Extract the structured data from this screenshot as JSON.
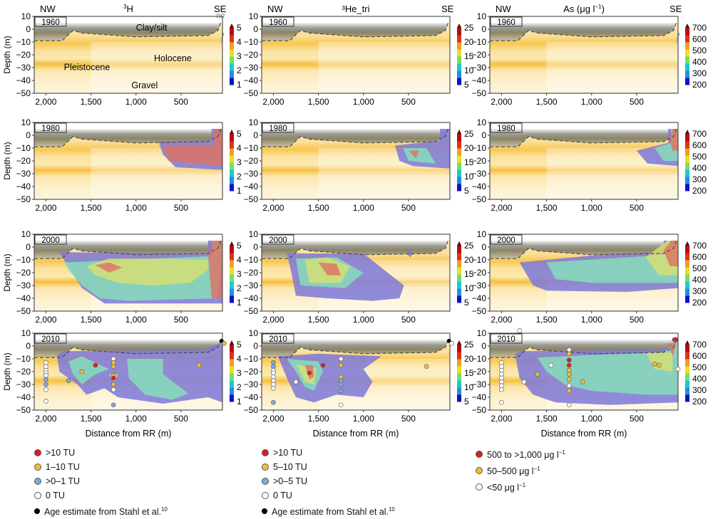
{
  "chart_data": {
    "type": "contour",
    "shared": {
      "xlabel": "Distance from RR (m)",
      "ylabel": "Depth (m)",
      "xlim": [
        2130,
        40
      ],
      "ylim": [
        -50,
        10
      ],
      "xticks": [
        "2,000",
        "1,500",
        "1,000",
        "500"
      ],
      "xtick_values": [
        2000,
        1500,
        1000,
        500
      ],
      "yticks": [
        "10",
        "0",
        "−10",
        "−20",
        "−30",
        "−40",
        "−50"
      ],
      "ytick_values": [
        10,
        0,
        -10,
        -20,
        -30,
        -40,
        -50
      ],
      "left_label": "NW",
      "right_label": "SE",
      "layer_labels": {
        "clay": "Clay/silt",
        "holocene": "Holocene",
        "pleistocene": "Pleistocene",
        "gravel": "Gravel",
        "river": "RR"
      }
    },
    "years": [
      "1960",
      "1980",
      "2000",
      "2010"
    ],
    "columns": [
      {
        "title": "³H",
        "title_base": "H",
        "title_sup": "3",
        "title_sub": "",
        "colorbar": {
          "ticks": [
            1,
            2,
            3,
            4,
            5
          ],
          "colors": [
            "#1010c0",
            "#1f8fe0",
            "#20c8c8",
            "#70e070",
            "#e8e020",
            "#f0a020",
            "#e03020",
            "#b01010"
          ],
          "extend": "max"
        }
      },
      {
        "title": "³He_tri",
        "title_base": "He",
        "title_sup": "3",
        "title_sub": "tri",
        "colorbar": {
          "ticks": [
            5,
            10,
            15,
            20,
            25
          ],
          "colors": [
            "#1010c0",
            "#1f8fe0",
            "#20c8c8",
            "#70e070",
            "#e8e020",
            "#f0a020",
            "#e03020",
            "#b01010"
          ],
          "extend": "max"
        }
      },
      {
        "title": "As (μg l⁻¹)",
        "title_base": "As (μg l",
        "title_sup": "−1",
        "title_tail": ")",
        "title_sub": "",
        "colorbar": {
          "ticks": [
            200,
            300,
            400,
            500,
            600,
            700
          ],
          "colors": [
            "#1010c0",
            "#1f8fe0",
            "#20c8c8",
            "#70e070",
            "#e8e020",
            "#f0a020",
            "#e03020",
            "#b01010"
          ],
          "extend": "max"
        }
      }
    ],
    "samples_2010": [
      {
        "column": 0,
        "points": [
          [
            2000,
            -13,
            "w"
          ],
          [
            2000,
            -16,
            "w"
          ],
          [
            2000,
            -19,
            "w"
          ],
          [
            2000,
            -21,
            "w"
          ],
          [
            2000,
            -23,
            "w"
          ],
          [
            2000,
            -26,
            "b"
          ],
          [
            2000,
            -30,
            "b"
          ],
          [
            2000,
            -34,
            "w"
          ],
          [
            2000,
            -43,
            "w"
          ],
          [
            1750,
            -27,
            "b"
          ],
          [
            1600,
            -20,
            "y"
          ],
          [
            1450,
            -15,
            "r"
          ],
          [
            1250,
            -10,
            "w"
          ],
          [
            1250,
            -13,
            "y"
          ],
          [
            1250,
            -16,
            "y"
          ],
          [
            1250,
            -23,
            "y"
          ],
          [
            1250,
            -25,
            "r"
          ],
          [
            1250,
            -30,
            "y"
          ],
          [
            1250,
            -34,
            "w"
          ],
          [
            1250,
            -46,
            "b"
          ],
          [
            300,
            -15,
            "y"
          ],
          [
            50,
            4,
            "k"
          ],
          [
            20,
            2,
            "y"
          ]
        ]
      },
      {
        "column": 1,
        "points": [
          [
            2000,
            -13,
            "b"
          ],
          [
            2000,
            -16,
            "b"
          ],
          [
            2000,
            -19,
            "w"
          ],
          [
            2000,
            -21,
            "w"
          ],
          [
            2000,
            -24,
            "w"
          ],
          [
            2000,
            -27,
            "w"
          ],
          [
            2000,
            -30,
            "w"
          ],
          [
            2000,
            -33,
            "w"
          ],
          [
            2000,
            -44,
            "b"
          ],
          [
            1750,
            -28,
            "w"
          ],
          [
            1600,
            -21,
            "r"
          ],
          [
            1450,
            -15,
            "r"
          ],
          [
            1250,
            -10,
            "w"
          ],
          [
            1250,
            -15,
            "y"
          ],
          [
            1250,
            -24,
            "y"
          ],
          [
            1250,
            -27,
            "b"
          ],
          [
            1250,
            -30,
            "b"
          ],
          [
            1250,
            -35,
            "b"
          ],
          [
            1250,
            -46,
            "w"
          ],
          [
            300,
            -16,
            "y"
          ],
          [
            50,
            4,
            "k"
          ],
          [
            20,
            2,
            "w"
          ]
        ]
      },
      {
        "column": 2,
        "points": [
          [
            2000,
            -13,
            "w"
          ],
          [
            2000,
            -16,
            "w"
          ],
          [
            2000,
            -19,
            "w"
          ],
          [
            2000,
            -22,
            "w"
          ],
          [
            2000,
            -25,
            "w"
          ],
          [
            2000,
            -28,
            "w"
          ],
          [
            2000,
            -31,
            "w"
          ],
          [
            2000,
            -34,
            "w"
          ],
          [
            2000,
            -44,
            "w"
          ],
          [
            1800,
            12,
            "w"
          ],
          [
            1750,
            -28,
            "w"
          ],
          [
            1600,
            -22,
            "y"
          ],
          [
            1450,
            -15,
            "w"
          ],
          [
            1250,
            -3,
            "w"
          ],
          [
            1250,
            -6,
            "y"
          ],
          [
            1250,
            -11,
            "r"
          ],
          [
            1250,
            -15,
            "r"
          ],
          [
            1250,
            -19,
            "y"
          ],
          [
            1250,
            -22,
            "y"
          ],
          [
            1250,
            -26,
            "y"
          ],
          [
            1250,
            -31,
            "w"
          ],
          [
            1250,
            -35,
            "y"
          ],
          [
            1250,
            -46,
            "w"
          ],
          [
            1100,
            -28,
            "y"
          ],
          [
            300,
            -14,
            "y"
          ],
          [
            250,
            -15,
            "y"
          ],
          [
            80,
            5,
            "r"
          ],
          [
            60,
            5,
            "r"
          ],
          [
            40,
            -18,
            "w"
          ]
        ]
      }
    ]
  },
  "legends": [
    {
      "items": [
        {
          "cat": "r",
          "label": ">10 TU"
        },
        {
          "cat": "y",
          "label": "1–10 TU"
        },
        {
          "cat": "b",
          "label": ">0–1 TU"
        },
        {
          "cat": "w",
          "label": "0 TU"
        },
        {
          "cat": "k",
          "label": "Age estimate from Stahl et al.",
          "sup": "10"
        }
      ]
    },
    {
      "items": [
        {
          "cat": "r",
          "label": ">10 TU"
        },
        {
          "cat": "y",
          "label": "5–10 TU"
        },
        {
          "cat": "b",
          "label": ">0–5 TU"
        },
        {
          "cat": "w",
          "label": "0 TU"
        },
        {
          "cat": "k",
          "label": "Age estimate from Stahl et al.",
          "sup": "10"
        }
      ]
    },
    {
      "items": [
        {
          "cat": "r",
          "label": "500 to >1,000 μg l",
          "sup": "−1"
        },
        {
          "cat": "y",
          "label": "50–500 μg l",
          "sup": "−1"
        },
        {
          "cat": "w",
          "label": "<50 μg l",
          "sup": "−1"
        }
      ]
    }
  ],
  "marker_colors": {
    "r": "#d42020",
    "y": "#f0c030",
    "b": "#80a8e0",
    "w": "#ffffff",
    "k": "#000000"
  }
}
